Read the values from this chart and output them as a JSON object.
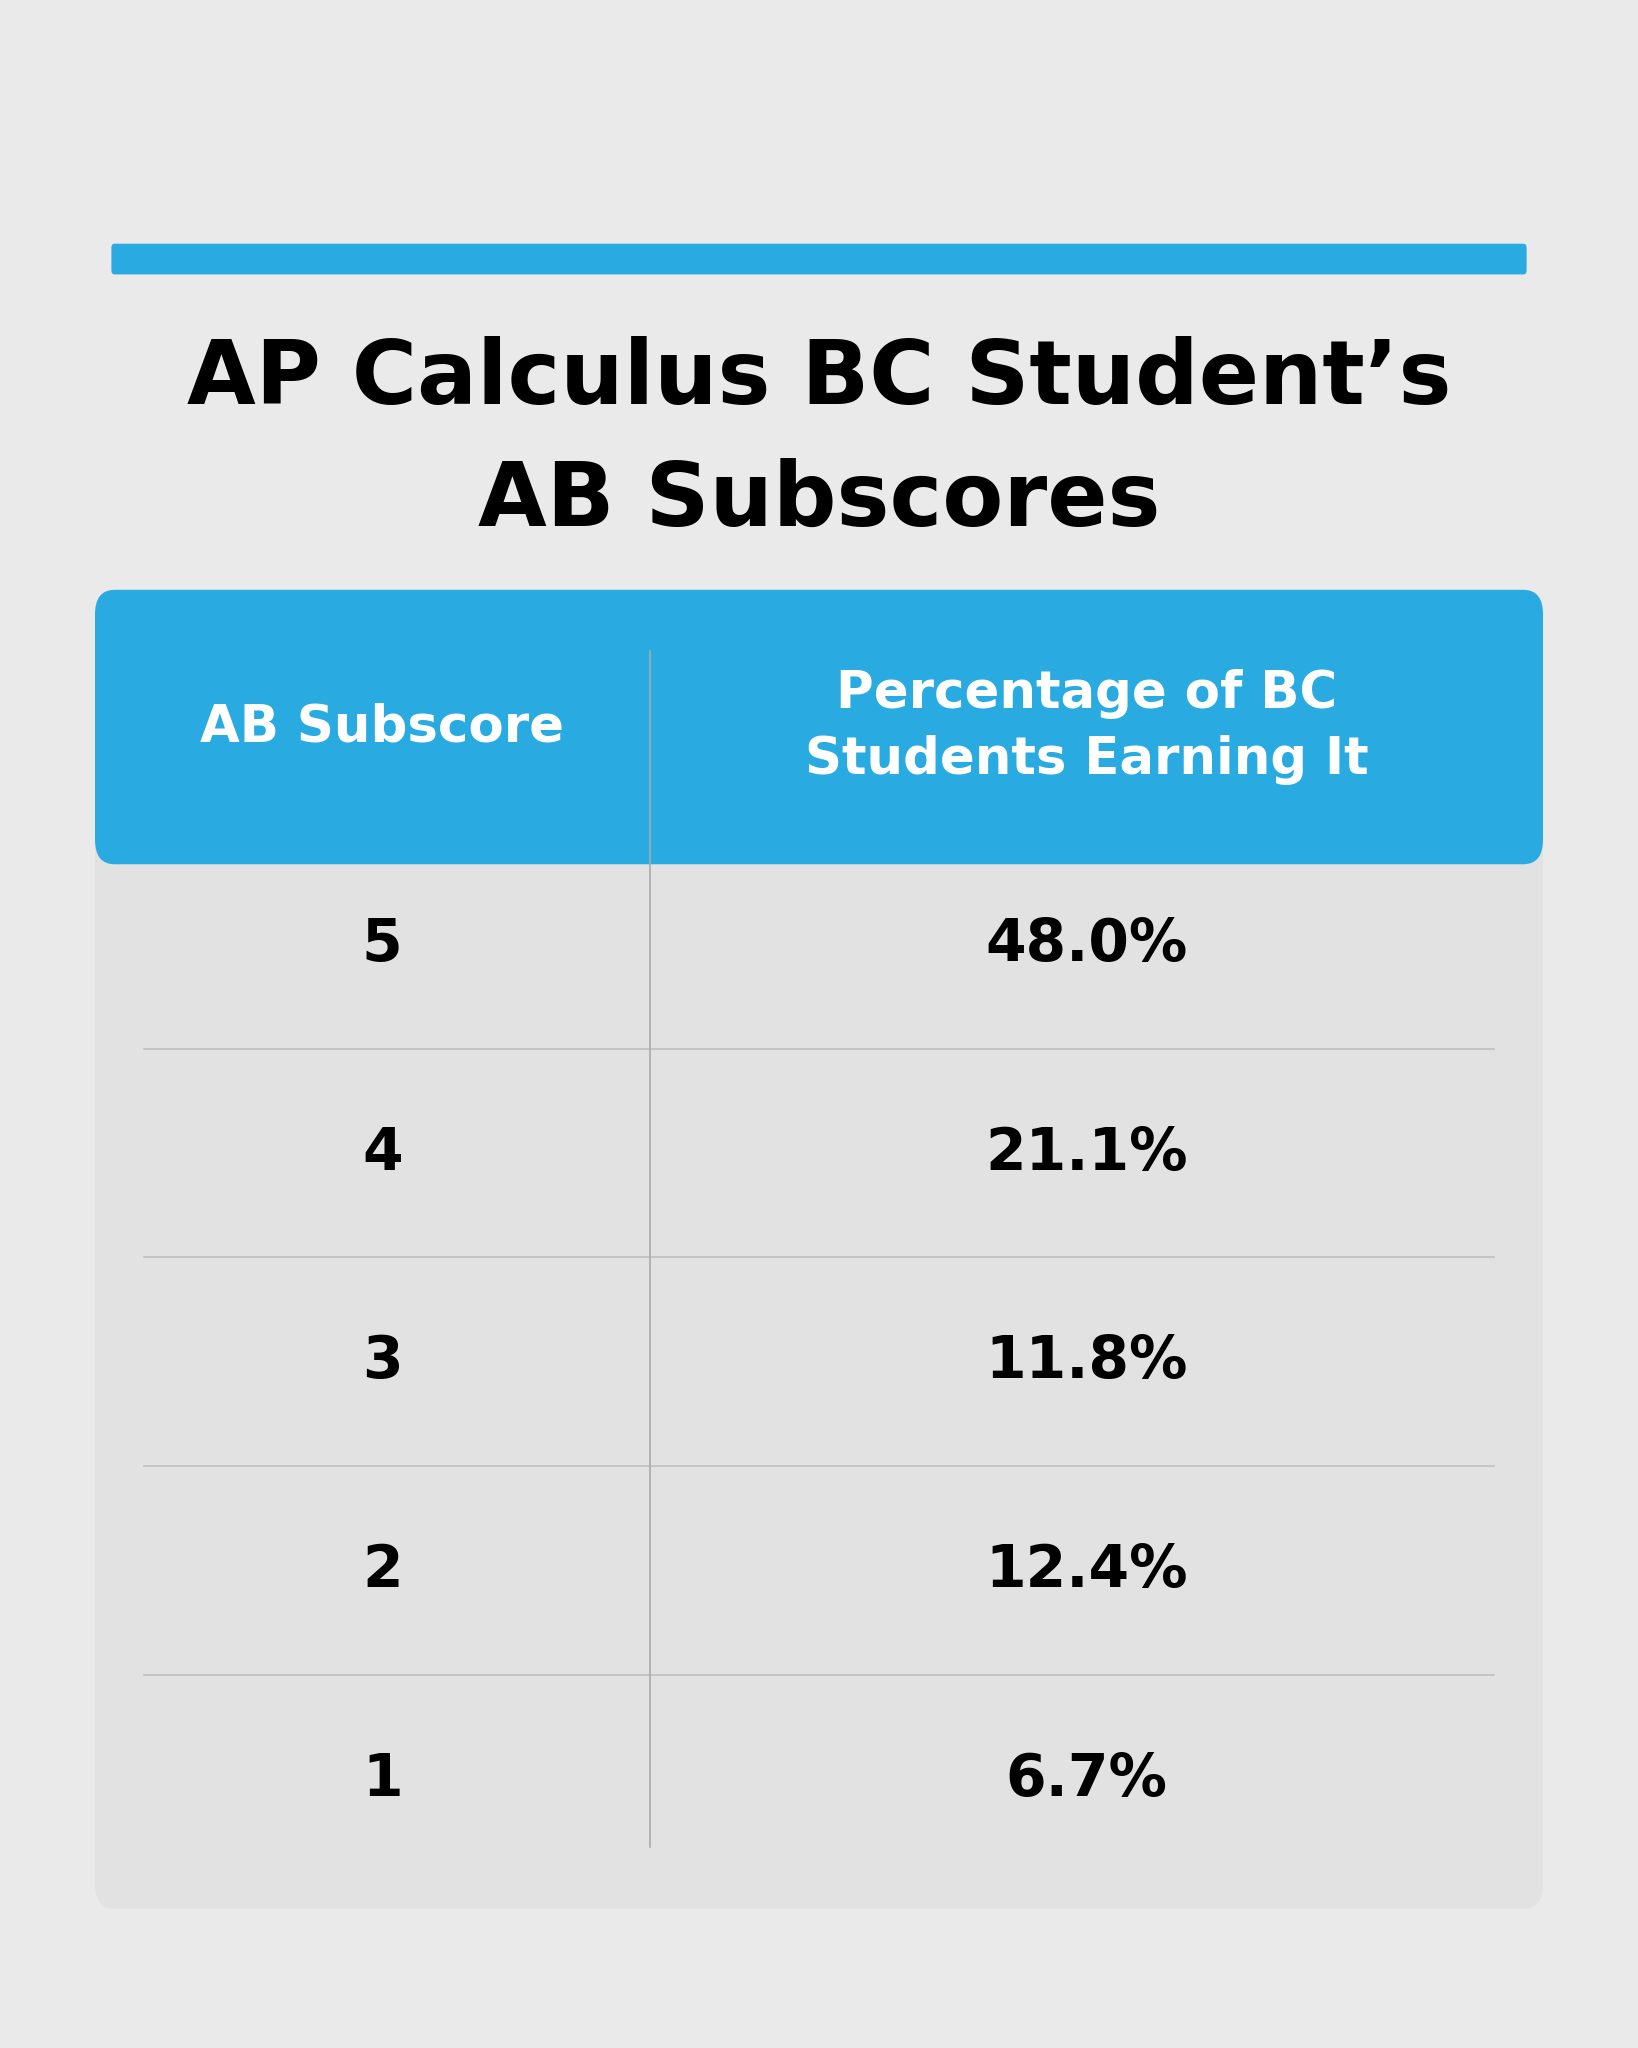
{
  "title_line1": "AP Calculus BC Student’s",
  "title_line2": "AB Subscores",
  "header_col1": "AB Subscore",
  "header_col2": "Percentage of BC\nStudents Earning It",
  "scores": [
    "5",
    "4",
    "3",
    "2",
    "1"
  ],
  "percentages": [
    "48.0%",
    "21.1%",
    "11.8%",
    "12.4%",
    "6.7%"
  ],
  "background_color": "#EAEAEA",
  "table_bg_color": "#E2E2E2",
  "header_bg_color": "#29ABE2",
  "row_line_color": "#C0C0C0",
  "col_divider_color": "#AAAAAA",
  "header_text_color": "#FFFFFF",
  "cell_text_color": "#000000",
  "title_color": "#000000",
  "accent_bar_color": "#29ABE2"
}
